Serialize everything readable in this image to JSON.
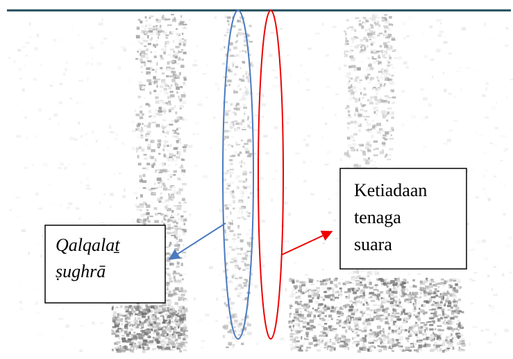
{
  "annotations": [
    {
      "lines": [
        "Qalqalaṯ",
        "ṣughrā"
      ]
    },
    {
      "lines": [
        "Ketiadaan",
        "tenaga",
        "suara"
      ]
    }
  ]
}
